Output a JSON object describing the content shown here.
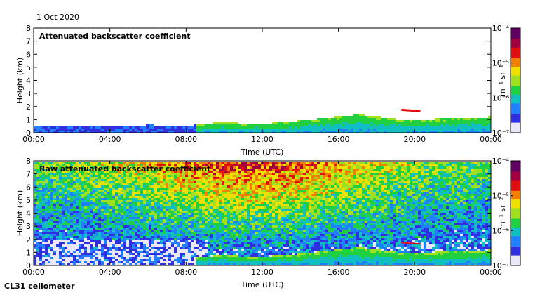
{
  "date_label": "1 Oct 2020",
  "footer_label": "CL31 ceilometer",
  "colorbar": {
    "unit_label": "m⁻¹ sr⁻¹",
    "ticks": [
      "10⁻⁴",
      "10⁻⁵",
      "10⁻⁶",
      "10⁻⁷"
    ],
    "colors": [
      "#e8e8f8",
      "#3030e0",
      "#2080ff",
      "#10c0c0",
      "#20d040",
      "#a0e020",
      "#f0e000",
      "#f08000",
      "#e01010",
      "#a00040",
      "#600060"
    ]
  },
  "chart_data": [
    {
      "type": "heatmap",
      "title": "Attenuated backscatter coefficient",
      "xlabel": "Time (UTC)",
      "ylabel": "Height (km)",
      "xticks": [
        "00:00",
        "04:00",
        "08:00",
        "12:00",
        "16:00",
        "20:00",
        "00:00"
      ],
      "yticks": [
        "0",
        "1",
        "2",
        "3",
        "4",
        "5",
        "6",
        "7",
        "8"
      ],
      "xlim": [
        0,
        24
      ],
      "ylim": [
        0,
        8
      ],
      "scale": "log",
      "clim": [
        1e-07,
        0.0001
      ],
      "features": [
        {
          "name": "boundary layer top",
          "times": [
            0,
            2,
            4,
            6,
            8,
            9,
            10,
            11,
            12,
            14,
            16,
            17,
            18,
            19,
            20,
            22,
            24
          ],
          "heights": [
            0.6,
            0.6,
            0.6,
            0.65,
            0.6,
            0.75,
            0.9,
            0.75,
            0.75,
            1.0,
            1.35,
            1.5,
            1.35,
            1.1,
            1.05,
            1.2,
            1.3
          ]
        },
        {
          "name": "elevated layer",
          "start": 19.3,
          "end": 20.3,
          "height": 1.75
        }
      ]
    },
    {
      "type": "heatmap",
      "title": "Raw attenuated backscatter coefficient",
      "xlabel": "Time (UTC)",
      "ylabel": "Height (km)",
      "xticks": [
        "00:00",
        "04:00",
        "08:00",
        "12:00",
        "16:00",
        "20:00",
        "00:00"
      ],
      "yticks": [
        "0",
        "1",
        "2",
        "3",
        "4",
        "5",
        "6",
        "7",
        "8"
      ],
      "xlim": [
        0,
        24
      ],
      "ylim": [
        0,
        8
      ],
      "scale": "log",
      "clim": [
        1e-07,
        0.0001
      ],
      "features": [
        {
          "name": "noise level",
          "description": "high noise aloft, peaking near 10:00-14:00"
        },
        {
          "name": "boundary layer top",
          "times": [
            0,
            8,
            9,
            10,
            11,
            12,
            14,
            16,
            17,
            18,
            19,
            20,
            22,
            24
          ],
          "heights": [
            0.6,
            0.6,
            0.75,
            0.9,
            0.75,
            0.75,
            1.0,
            1.35,
            1.5,
            1.35,
            1.1,
            1.05,
            1.2,
            1.3
          ]
        }
      ]
    }
  ]
}
